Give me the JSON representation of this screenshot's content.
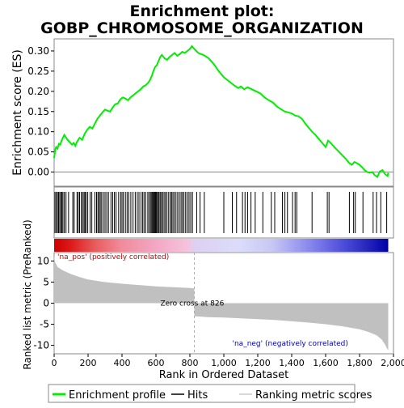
{
  "chart_data": {
    "type": "line",
    "title_line1": "Enrichment plot:",
    "title_line2": "GOBP_CHROMOSOME_ORGANIZATION",
    "ylabel_top": "Enrichment score (ES)",
    "ylabel_bottom": "Ranked list metric (PreRanked)",
    "xlabel": "Rank in Ordered Dataset",
    "xlim": [
      0,
      2000
    ],
    "ylim_top": [
      -0.035,
      0.33
    ],
    "ylim_bottom": [
      -12,
      12
    ],
    "x_ticks": [
      0,
      200,
      400,
      600,
      800,
      1000,
      1200,
      1400,
      1600,
      1800,
      2000
    ],
    "x_tick_labels": [
      "0",
      "200",
      "400",
      "600",
      "800",
      "1,000",
      "1,200",
      "1,400",
      "1,600",
      "1,800",
      "2,000"
    ],
    "y_ticks_top": [
      0.0,
      0.05,
      0.1,
      0.15,
      0.2,
      0.25,
      0.3
    ],
    "y_tick_labels_top": [
      "0.00",
      "0.05",
      "0.10",
      "0.15",
      "0.20",
      "0.25",
      "0.30"
    ],
    "y_ticks_bottom": [
      -10,
      -5,
      0,
      5,
      10
    ],
    "y_tick_labels_bottom": [
      "-10",
      "-5",
      "0",
      "5",
      "10"
    ],
    "zero_cross_rank": 826,
    "zero_cross_label": "Zero cross at 826",
    "pos_label": "'na_pos' (positively correlated)",
    "neg_label": "'na_neg' (negatively correlated)",
    "n_genes": 1969,
    "series": [
      {
        "name": "Enrichment profile",
        "color": "#00ee00",
        "points": [
          [
            0,
            0.035
          ],
          [
            6,
            0.055
          ],
          [
            12,
            0.062
          ],
          [
            20,
            0.058
          ],
          [
            28,
            0.07
          ],
          [
            36,
            0.068
          ],
          [
            44,
            0.078
          ],
          [
            52,
            0.085
          ],
          [
            60,
            0.092
          ],
          [
            75,
            0.082
          ],
          [
            90,
            0.075
          ],
          [
            105,
            0.068
          ],
          [
            115,
            0.072
          ],
          [
            125,
            0.065
          ],
          [
            135,
            0.075
          ],
          [
            150,
            0.085
          ],
          [
            165,
            0.08
          ],
          [
            180,
            0.095
          ],
          [
            195,
            0.105
          ],
          [
            210,
            0.112
          ],
          [
            225,
            0.108
          ],
          [
            240,
            0.12
          ],
          [
            255,
            0.132
          ],
          [
            270,
            0.14
          ],
          [
            285,
            0.148
          ],
          [
            300,
            0.155
          ],
          [
            315,
            0.152
          ],
          [
            330,
            0.15
          ],
          [
            345,
            0.16
          ],
          [
            360,
            0.168
          ],
          [
            375,
            0.17
          ],
          [
            390,
            0.18
          ],
          [
            405,
            0.185
          ],
          [
            420,
            0.182
          ],
          [
            435,
            0.178
          ],
          [
            450,
            0.185
          ],
          [
            465,
            0.19
          ],
          [
            480,
            0.195
          ],
          [
            495,
            0.2
          ],
          [
            510,
            0.205
          ],
          [
            525,
            0.212
          ],
          [
            540,
            0.215
          ],
          [
            555,
            0.222
          ],
          [
            565,
            0.228
          ],
          [
            575,
            0.238
          ],
          [
            585,
            0.25
          ],
          [
            595,
            0.26
          ],
          [
            605,
            0.265
          ],
          [
            615,
            0.275
          ],
          [
            625,
            0.285
          ],
          [
            635,
            0.29
          ],
          [
            650,
            0.282
          ],
          [
            665,
            0.278
          ],
          [
            680,
            0.285
          ],
          [
            695,
            0.29
          ],
          [
            710,
            0.295
          ],
          [
            725,
            0.288
          ],
          [
            740,
            0.292
          ],
          [
            755,
            0.298
          ],
          [
            770,
            0.295
          ],
          [
            785,
            0.3
          ],
          [
            800,
            0.305
          ],
          [
            812,
            0.312
          ],
          [
            826,
            0.305
          ],
          [
            850,
            0.295
          ],
          [
            880,
            0.29
          ],
          [
            910,
            0.282
          ],
          [
            940,
            0.268
          ],
          [
            970,
            0.25
          ],
          [
            1000,
            0.235
          ],
          [
            1030,
            0.225
          ],
          [
            1060,
            0.215
          ],
          [
            1085,
            0.208
          ],
          [
            1100,
            0.212
          ],
          [
            1120,
            0.205
          ],
          [
            1140,
            0.21
          ],
          [
            1165,
            0.205
          ],
          [
            1190,
            0.2
          ],
          [
            1215,
            0.195
          ],
          [
            1240,
            0.185
          ],
          [
            1265,
            0.178
          ],
          [
            1290,
            0.172
          ],
          [
            1315,
            0.162
          ],
          [
            1340,
            0.155
          ],
          [
            1360,
            0.15
          ],
          [
            1380,
            0.148
          ],
          [
            1400,
            0.145
          ],
          [
            1420,
            0.14
          ],
          [
            1440,
            0.138
          ],
          [
            1460,
            0.132
          ],
          [
            1480,
            0.12
          ],
          [
            1500,
            0.11
          ],
          [
            1520,
            0.1
          ],
          [
            1540,
            0.092
          ],
          [
            1560,
            0.082
          ],
          [
            1580,
            0.072
          ],
          [
            1600,
            0.062
          ],
          [
            1615,
            0.078
          ],
          [
            1630,
            0.072
          ],
          [
            1660,
            0.058
          ],
          [
            1690,
            0.045
          ],
          [
            1720,
            0.032
          ],
          [
            1740,
            0.022
          ],
          [
            1755,
            0.018
          ],
          [
            1770,
            0.025
          ],
          [
            1785,
            0.022
          ],
          [
            1800,
            0.018
          ],
          [
            1815,
            0.012
          ],
          [
            1830,
            0.005
          ],
          [
            1845,
            0.0
          ],
          [
            1860,
            -0.002
          ],
          [
            1875,
            0.0
          ],
          [
            1890,
            -0.008
          ],
          [
            1905,
            -0.012
          ],
          [
            1920,
            0.002
          ],
          [
            1935,
            0.005
          ],
          [
            1950,
            -0.005
          ],
          [
            1965,
            -0.01
          ],
          [
            1969,
            -0.002
          ]
        ]
      }
    ],
    "hit_ranks": [
      5,
      12,
      20,
      26,
      33,
      40,
      46,
      52,
      60,
      70,
      85,
      110,
      118,
      135,
      142,
      150,
      160,
      168,
      176,
      182,
      188,
      198,
      212,
      222,
      240,
      250,
      258,
      265,
      272,
      280,
      290,
      300,
      310,
      320,
      335,
      345,
      355,
      365,
      380,
      392,
      400,
      408,
      420,
      430,
      440,
      452,
      465,
      478,
      490,
      500,
      512,
      522,
      530,
      540,
      552,
      560,
      568,
      575,
      580,
      585,
      590,
      595,
      600,
      605,
      612,
      618,
      625,
      632,
      640,
      648,
      656,
      665,
      675,
      685,
      692,
      700,
      708,
      718,
      728,
      738,
      748,
      756,
      765,
      775,
      785,
      795,
      805,
      815,
      840,
      860,
      885,
      1000,
      1050,
      1075,
      1110,
      1125,
      1140,
      1160,
      1185,
      1230,
      1280,
      1300,
      1345,
      1360,
      1375,
      1405,
      1420,
      1430,
      1520,
      1610,
      1620,
      1740,
      1765,
      1775,
      1820,
      1880,
      1900,
      1925,
      1960
    ],
    "metric_curve": [
      [
        0,
        11.5
      ],
      [
        5,
        9.8
      ],
      [
        20,
        8.6
      ],
      [
        50,
        7.8
      ],
      [
        100,
        6.9
      ],
      [
        150,
        6.2
      ],
      [
        200,
        5.6
      ],
      [
        300,
        5.0
      ],
      [
        400,
        4.6
      ],
      [
        500,
        4.3
      ],
      [
        600,
        4.0
      ],
      [
        700,
        3.8
      ],
      [
        800,
        3.6
      ],
      [
        826,
        3.5
      ],
      [
        826,
        -3.1
      ],
      [
        900,
        -3.3
      ],
      [
        1000,
        -3.4
      ],
      [
        1100,
        -3.6
      ],
      [
        1200,
        -3.8
      ],
      [
        1300,
        -4.0
      ],
      [
        1400,
        -4.3
      ],
      [
        1500,
        -4.6
      ],
      [
        1600,
        -5.0
      ],
      [
        1700,
        -5.5
      ],
      [
        1800,
        -6.2
      ],
      [
        1850,
        -6.8
      ],
      [
        1900,
        -7.6
      ],
      [
        1930,
        -8.6
      ],
      [
        1950,
        -9.8
      ],
      [
        1960,
        -10.6
      ],
      [
        1969,
        -11.2
      ]
    ],
    "heat_colors": [
      [
        0.0,
        "#cc0000"
      ],
      [
        0.05,
        "#dd1a1a"
      ],
      [
        0.12,
        "#e85a5a"
      ],
      [
        0.2,
        "#f08b9a"
      ],
      [
        0.3,
        "#f2a6c2"
      ],
      [
        0.4,
        "#f5c3dc"
      ],
      [
        0.42,
        "#ddd0f2"
      ],
      [
        0.55,
        "#dcdcfa"
      ],
      [
        0.65,
        "#c8c8f5"
      ],
      [
        0.75,
        "#9090ee"
      ],
      [
        0.86,
        "#5050dd"
      ],
      [
        0.94,
        "#2424bb"
      ],
      [
        1.0,
        "#0000aa"
      ]
    ],
    "legend": [
      {
        "label": "Enrichment profile",
        "color": "#00ee00",
        "kind": "line"
      },
      {
        "label": "Hits",
        "color": "#000000",
        "kind": "line"
      },
      {
        "label": "Ranking metric scores",
        "color": "#cccccc",
        "kind": "line"
      }
    ]
  }
}
